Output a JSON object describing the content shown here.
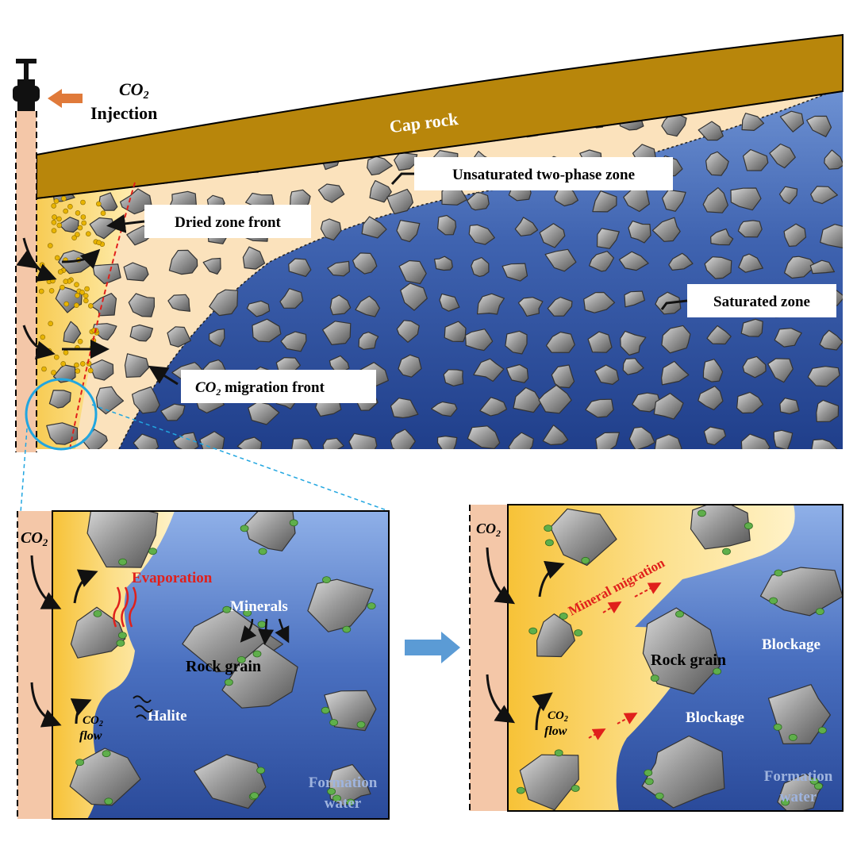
{
  "colors": {
    "cap_rock": "#B8860B",
    "saturated": "#3F63B0",
    "unsaturated": "#FBE2BC",
    "dried": "#FFD966",
    "well": "#F4C7A8",
    "grain": "#8C8C8C",
    "mineral": "#5FAF4B",
    "label_red": "#E0201B",
    "label_white_text": "#FFFFFF",
    "front_line": "#E0201B",
    "zoom_circle": "#21A6E0",
    "arrow_orange": "#E07A3A",
    "arrow_blue": "#5B9BD5"
  },
  "top": {
    "injection": {
      "co2": "CO",
      "co2_sub": "2",
      "label": "Injection"
    },
    "cap_rock": "Cap rock",
    "labels": {
      "unsaturated": "Unsaturated two-phase zone",
      "dried": "Dried zone front",
      "saturated": "Saturated zone",
      "migration_co2": "CO",
      "migration_sub": "2",
      "migration_rest": " migration front"
    }
  },
  "left_panel": {
    "co2": "CO",
    "co2_sub": "2",
    "evaporation": "Evaporation",
    "minerals": "Minerals",
    "rock_grain": "Rock grain",
    "halite": "Halite",
    "flow_co2": "CO",
    "flow_sub": "2",
    "flow": "flow",
    "formation_water_1": "Formation",
    "formation_water_2": "water"
  },
  "right_panel": {
    "co2": "CO",
    "co2_sub": "2",
    "mineral_migration": "Mineral migration",
    "rock_grain": "Rock grain",
    "blockage_1": "Blockage",
    "blockage_2": "Blockage",
    "flow_co2": "CO",
    "flow_sub": "2",
    "flow": "flow",
    "formation_water_1": "Formation",
    "formation_water_2": "water"
  }
}
